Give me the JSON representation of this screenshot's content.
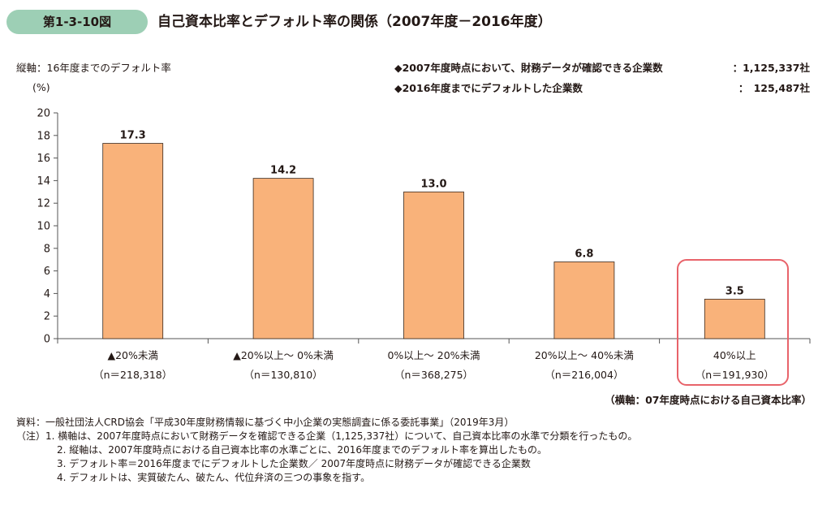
{
  "header": {
    "badge": "第1-3-10図",
    "title": "自己資本比率とデフォルト率の関係（2007年度－2016年度）"
  },
  "notes": {
    "vertical_axis": "縦軸：16年度までのデフォルト率",
    "unit": "(%)",
    "horizontal_axis": "（横軸：07年度時点における自己資本比率）"
  },
  "info": [
    {
      "label": "◆2007年度時点において、財務データが確認できる企業数",
      "value": "：1,125,337社"
    },
    {
      "label": "◆2016年度までにデフォルトした企業数",
      "value": "：　125,487社"
    }
  ],
  "chart_data": {
    "type": "bar",
    "title": "自己資本比率とデフォルト率の関係（2007年度－2016年度）",
    "ylabel": "16年度までのデフォルト率 (%)",
    "xlabel": "07年度時点における自己資本比率",
    "ylim": [
      0,
      20
    ],
    "yticks": [
      0,
      2,
      4,
      6,
      8,
      10,
      12,
      14,
      16,
      18,
      20
    ],
    "categories": [
      "▲20%未満",
      "▲20%以上～ 0%未満",
      "0%以上～ 20%未満",
      "20%以上～ 40%未満",
      "40%以上"
    ],
    "sample_sizes": [
      "（n＝218,318）",
      "（n＝130,810）",
      "（n＝368,275）",
      "（n＝216,004）",
      "（n＝191,930）"
    ],
    "values": [
      17.3,
      14.2,
      13.0,
      6.8,
      3.5
    ],
    "value_labels": [
      "17.3",
      "14.2",
      "13.0",
      "6.8",
      "3.5"
    ],
    "highlighted_index": 4,
    "bar_color": "#f9b27a",
    "highlight_color": "#e8636a",
    "grid": false
  },
  "footnotes": [
    "資料：一般社団法人CRD協会「平成30年度財務情報に基づく中小企業の実態調査に係る委託事業」（2019年3月）",
    "（注）1. 横軸は、2007年度時点において財務データを確認できる企業（1,125,337社）について、自己資本比率の水準で分類を行ったもの。",
    "2. 縦軸は、2007年度時点における自己資本比率の水準ごとに、2016年度までのデフォルト率を算出したもの。",
    "3. デフォルト率＝2016年度までにデフォルトした企業数／ 2007年度時点に財務データが確認できる企業数",
    "4. デフォルトは、実質破たん、破たん、代位弁済の三つの事象を指す。"
  ]
}
